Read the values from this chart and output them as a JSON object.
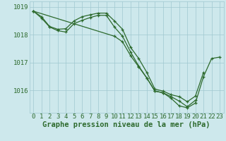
{
  "bg_color": "#cde8ec",
  "grid_color": "#a0c8d0",
  "line_color": "#2d6a2d",
  "marker_color": "#2d6a2d",
  "title": "Graphe pression niveau de la mer (hPa)",
  "tick_fontsize": 6.5,
  "title_fontsize": 7.5,
  "xlim": [
    -0.5,
    23.5
  ],
  "ylim": [
    1015.2,
    1019.2
  ],
  "yticks": [
    1016,
    1017,
    1018,
    1019
  ],
  "xticks": [
    0,
    1,
    2,
    3,
    4,
    5,
    6,
    7,
    8,
    9,
    10,
    11,
    12,
    13,
    14,
    15,
    16,
    17,
    18,
    19,
    20,
    21,
    22,
    23
  ],
  "series": [
    {
      "x": [
        0,
        1,
        2,
        3,
        4,
        5,
        6,
        7,
        8,
        9,
        10,
        11,
        12,
        13,
        14,
        15,
        16,
        17,
        18,
        19,
        20,
        21
      ],
      "y": [
        1018.85,
        1018.65,
        1018.3,
        1018.2,
        1018.22,
        1018.5,
        1018.65,
        1018.72,
        1018.78,
        1018.78,
        1018.5,
        1018.2,
        1017.55,
        1017.15,
        1016.65,
        1016.05,
        1015.98,
        1015.85,
        1015.78,
        1015.6,
        1015.8,
        1016.65
      ]
    },
    {
      "x": [
        0,
        1,
        2,
        3,
        4,
        5,
        6,
        7,
        8,
        9,
        10,
        11,
        12,
        13,
        14,
        15,
        16,
        17,
        18,
        19,
        20
      ],
      "y": [
        1018.85,
        1018.6,
        1018.28,
        1018.15,
        1018.1,
        1018.4,
        1018.52,
        1018.62,
        1018.7,
        1018.7,
        1018.28,
        1017.95,
        1017.38,
        1016.88,
        1016.45,
        1015.98,
        1015.92,
        1015.78,
        1015.62,
        1015.42,
        1015.65
      ]
    },
    {
      "x": [
        0,
        10,
        11,
        12,
        13,
        14,
        15,
        16,
        17,
        18,
        19,
        20,
        21,
        22,
        23
      ],
      "y": [
        1018.85,
        1017.95,
        1017.75,
        1017.25,
        1016.85,
        1016.45,
        1015.98,
        1015.92,
        1015.72,
        1015.45,
        1015.38,
        1015.55,
        1016.5,
        1017.15,
        1017.2
      ]
    }
  ]
}
